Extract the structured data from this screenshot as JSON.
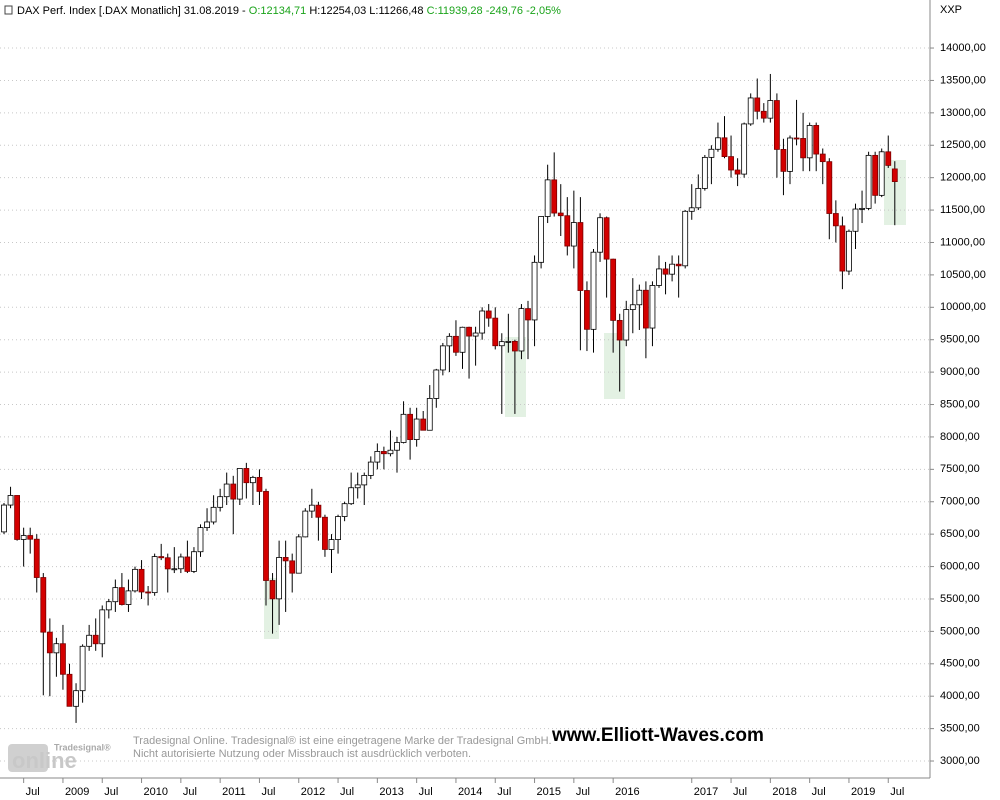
{
  "chart_data": {
    "type": "candlestick",
    "title": "DAX Perf. Index [.DAX  Monatlich]",
    "date": "31.08.2019 -",
    "header_open": "O:12134,71",
    "header_high": "H:12254,03",
    "header_low": "L:11266,48",
    "header_close": "C:11939,28",
    "header_change": "-249,76",
    "header_change_pct": "-2,05%",
    "y_axis_label": "XXP",
    "annotations": [
      "Tradesignal Online. Tradesignal® ist eine eingetragene Marke der Tradesignal GmbH.",
      "Nicht autorisierte Nutzung oder Missbrauch ist ausdrücklich verboten.",
      "www.Elliott-Waves.com",
      "Tradesignal®",
      "online"
    ],
    "up_color": "#ffffff",
    "down_color": "#d40000",
    "grid": true,
    "ylim": [
      2738,
      14741
    ],
    "yticks": [
      {
        "value": 3000,
        "label": "3000,00"
      },
      {
        "value": 3500,
        "label": "3500,00"
      },
      {
        "value": 4000,
        "label": "4000,00"
      },
      {
        "value": 4500,
        "label": "4500,00"
      },
      {
        "value": 5000,
        "label": "5000,00"
      },
      {
        "value": 5500,
        "label": "5500,00"
      },
      {
        "value": 6000,
        "label": "6000,00"
      },
      {
        "value": 6500,
        "label": "6500,00"
      },
      {
        "value": 7000,
        "label": "7000,00"
      },
      {
        "value": 7500,
        "label": "7500,00"
      },
      {
        "value": 8000,
        "label": "8000,00"
      },
      {
        "value": 8500,
        "label": "8500,00"
      },
      {
        "value": 9000,
        "label": "9000,00"
      },
      {
        "value": 9500,
        "label": "9500,00"
      },
      {
        "value": 10000,
        "label": "10000,00"
      },
      {
        "value": 10500,
        "label": "10500,00"
      },
      {
        "value": 11000,
        "label": "11000,00"
      },
      {
        "value": 11500,
        "label": "11500,00"
      },
      {
        "value": 12000,
        "label": "12000,00"
      },
      {
        "value": 12500,
        "label": "12500,00"
      },
      {
        "value": 13000,
        "label": "13000,00"
      },
      {
        "value": 13500,
        "label": "13500,00"
      },
      {
        "value": 14000,
        "label": "14000,00"
      }
    ],
    "categories": [
      null,
      null,
      null,
      "Jul",
      null,
      null,
      null,
      null,
      null,
      "2009",
      null,
      null,
      null,
      null,
      null,
      "Jul",
      null,
      null,
      null,
      null,
      null,
      "2010",
      null,
      null,
      null,
      null,
      null,
      "Jul",
      null,
      null,
      null,
      null,
      null,
      "2011",
      null,
      null,
      null,
      null,
      null,
      "Jul",
      null,
      null,
      null,
      null,
      null,
      "2012",
      null,
      null,
      null,
      null,
      null,
      "Jul",
      null,
      null,
      null,
      null,
      null,
      "2013",
      null,
      null,
      null,
      null,
      null,
      "Jul",
      null,
      null,
      null,
      null,
      null,
      "2014",
      null,
      null,
      null,
      null,
      null,
      "Jul",
      null,
      null,
      null,
      null,
      null,
      "2015",
      null,
      null,
      null,
      null,
      null,
      "Jul",
      null,
      null,
      null,
      null,
      null,
      "2016",
      null,
      null,
      null,
      null,
      null,
      null,
      null,
      null,
      null,
      null,
      null,
      "2017",
      null,
      null,
      null,
      null,
      null,
      "Jul",
      null,
      null,
      null,
      null,
      null,
      "2018",
      null,
      null,
      null,
      null,
      null,
      "Jul",
      null,
      null,
      null,
      null,
      null,
      "2019",
      null,
      null,
      null,
      null,
      null,
      "Jul",
      null
    ],
    "open": [
      6535,
      6949,
      7097,
      6418,
      6479,
      6422,
      5831,
      4988,
      4669,
      4810,
      4338,
      3844,
      4085,
      4770,
      4940,
      4809,
      5332,
      5458,
      5675,
      5414,
      5625,
      5957,
      5608,
      5598,
      6154,
      6136,
      5964,
      5966,
      6148,
      5925,
      6229,
      6601,
      6688,
      6914,
      7078,
      7273,
      7041,
      7514,
      7294,
      7376,
      7159,
      5785,
      5502,
      6141,
      6088,
      5898,
      6458,
      6856,
      6947,
      6761,
      6264,
      6416,
      6772,
      6970,
      7216,
      7260,
      7406,
      7612,
      7776,
      7741,
      7795,
      7914,
      8349,
      7959,
      8276,
      8103,
      8594,
      9033,
      9405,
      9552,
      9306,
      9692,
      9556,
      9603,
      9943,
      9833,
      9407,
      9470,
      9474,
      9326,
      9980,
      9805,
      10694,
      11401,
      11966,
      11454,
      11413,
      10945,
      11308,
      10259,
      9660,
      10850,
      11382,
      10743,
      9798,
      9495,
      9965,
      10039,
      10263,
      9680,
      10337,
      10592,
      10511,
      10665,
      10640,
      11481,
      11535,
      11834,
      12313,
      12438,
      12615,
      12325,
      12118,
      12055,
      12829,
      13230,
      13024,
      12918,
      13190,
      12436,
      12097,
      12612,
      12605,
      12306,
      12806,
      12364,
      12247,
      11447,
      11257,
      10559,
      11173,
      11516,
      11526,
      12344,
      11727,
      12399,
      12134.71
    ],
    "high": [
      6980,
      7231,
      7100,
      6600,
      6600,
      6500,
      5900,
      5200,
      4900,
      5100,
      4500,
      4200,
      4800,
      5100,
      5200,
      5400,
      5500,
      5800,
      5900,
      5800,
      6000,
      6100,
      5700,
      6200,
      6350,
      6200,
      6300,
      6200,
      6400,
      6300,
      6650,
      6900,
      7100,
      7200,
      7450,
      7400,
      7500,
      7600,
      7400,
      7500,
      7200,
      5900,
      6400,
      6400,
      6200,
      6500,
      6900,
      7200,
      7000,
      6800,
      6500,
      6800,
      7000,
      7450,
      7450,
      7450,
      7700,
      7900,
      7850,
      8100,
      8000,
      8550,
      8450,
      8450,
      8400,
      8800,
      9050,
      9450,
      9600,
      9800,
      9700,
      9700,
      9700,
      10000,
      10050,
      10000,
      9600,
      9900,
      9500,
      10050,
      10100,
      10800,
      11400,
      12200,
      12390,
      11900,
      11700,
      11800,
      11700,
      10400,
      10900,
      11450,
      11400,
      10750,
      9900,
      10100,
      10450,
      10350,
      10400,
      10400,
      10800,
      10700,
      10800,
      10800,
      11500,
      11900,
      12050,
      12350,
      12500,
      12850,
      12950,
      12650,
      12300,
      12850,
      13300,
      13530,
      13150,
      13600,
      13300,
      12600,
      12650,
      13200,
      13000,
      12850,
      12850,
      12450,
      12300,
      11650,
      11400,
      11200,
      11600,
      11800,
      12400,
      12400,
      12450,
      12650,
      12254.03
    ],
    "low": [
      6500,
      6900,
      6400,
      6000,
      6200,
      5600,
      4014,
      4000,
      4300,
      4100,
      3900,
      3588,
      3900,
      4700,
      4700,
      4600,
      5200,
      5300,
      5400,
      5300,
      5600,
      5500,
      5400,
      5550,
      6100,
      5600,
      5900,
      5900,
      5900,
      5900,
      6150,
      6550,
      6650,
      6850,
      6950,
      6500,
      6950,
      7050,
      6950,
      6950,
      5400,
      4965,
      5100,
      5300,
      5600,
      5900,
      6450,
      6750,
      6400,
      6150,
      5900,
      6200,
      6700,
      6950,
      7050,
      6950,
      7350,
      7500,
      7500,
      7700,
      7450,
      7900,
      7650,
      7850,
      8100,
      8100,
      8450,
      8950,
      9000,
      9250,
      9050,
      8900,
      9100,
      9500,
      9700,
      9350,
      8355,
      9300,
      8355,
      9200,
      9200,
      9400,
      10600,
      11300,
      11400,
      11100,
      10800,
      10600,
      9338,
      9325,
      9300,
      10700,
      10150,
      9300,
      8700,
      9400,
      9600,
      9650,
      9214,
      9400,
      10300,
      10200,
      10400,
      10150,
      10600,
      11350,
      11500,
      11800,
      11900,
      12400,
      12300,
      12000,
      11870,
      12000,
      12800,
      12900,
      12850,
      12850,
      12000,
      11730,
      11900,
      12500,
      12100,
      12100,
      12100,
      11900,
      11050,
      11000,
      10280,
      10500,
      10900,
      11300,
      11500,
      11600,
      11700,
      12150,
      11266.48
    ],
    "close": [
      6949,
      7097,
      6418,
      6479,
      6422,
      5831,
      4988,
      4669,
      4810,
      4338,
      3844,
      4085,
      4770,
      4940,
      4809,
      5332,
      5458,
      5675,
      5414,
      5625,
      5957,
      5608,
      5598,
      6154,
      6136,
      5964,
      5966,
      6148,
      5925,
      6229,
      6601,
      6688,
      6914,
      7078,
      7273,
      7041,
      7514,
      7294,
      7376,
      7159,
      5785,
      5502,
      6141,
      6088,
      5898,
      6458,
      6856,
      6947,
      6761,
      6264,
      6416,
      6772,
      6970,
      7216,
      7260,
      7406,
      7612,
      7776,
      7741,
      7795,
      7914,
      8349,
      7959,
      8276,
      8103,
      8594,
      9033,
      9405,
      9552,
      9306,
      9692,
      9556,
      9603,
      9943,
      9833,
      9407,
      9470,
      9474,
      9326,
      9980,
      9805,
      10694,
      11401,
      11966,
      11454,
      11413,
      10945,
      11308,
      10259,
      9660,
      10850,
      11382,
      10743,
      9798,
      9495,
      9965,
      10039,
      10263,
      9680,
      10337,
      10592,
      10511,
      10665,
      10640,
      11481,
      11535,
      11834,
      12313,
      12438,
      12615,
      12325,
      12118,
      12055,
      12829,
      13230,
      13024,
      12918,
      13190,
      12436,
      12097,
      12612,
      12605,
      12306,
      12806,
      12364,
      12247,
      11447,
      11257,
      10559,
      11173,
      11516,
      11526,
      12344,
      11727,
      12399,
      12189,
      11939.28
    ]
  }
}
